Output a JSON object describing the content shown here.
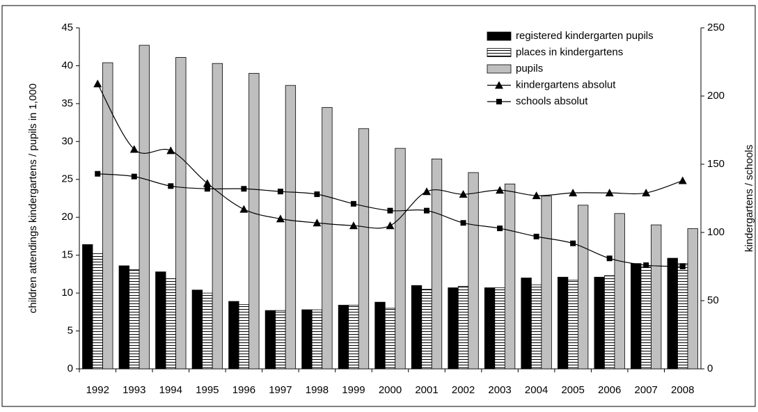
{
  "chart_data": {
    "type": "bar-line",
    "y_label": "children attendings kindergartens / pupils in 1,000",
    "y2_label": "kindergartens / schools",
    "categories": [
      "1992",
      "1993",
      "1994",
      "1995",
      "1996",
      "1997",
      "1998",
      "1999",
      "2000",
      "2001",
      "2002",
      "2003",
      "2004",
      "2005",
      "2006",
      "2007",
      "2008"
    ],
    "ylim": [
      0,
      45
    ],
    "yticks": [
      0,
      5,
      10,
      15,
      20,
      25,
      30,
      35,
      40,
      45
    ],
    "y2lim": [
      0,
      250
    ],
    "y2ticks": [
      0,
      50,
      100,
      150,
      200,
      250
    ],
    "legend": "top-right",
    "series": [
      {
        "name": "registered kindergarten pupils",
        "type": "bar",
        "color": "#000000",
        "values": [
          16.4,
          13.6,
          12.8,
          10.4,
          8.9,
          7.7,
          7.8,
          8.4,
          8.8,
          11.0,
          10.7,
          10.7,
          12.0,
          12.1,
          12.1,
          13.9,
          14.6
        ]
      },
      {
        "name": "places in kindergartens",
        "type": "bar",
        "color": "#ffffff",
        "pattern": "horizontal-lines",
        "values": [
          15.2,
          13.1,
          11.9,
          10.0,
          8.5,
          7.7,
          7.8,
          8.4,
          8.0,
          10.5,
          10.9,
          10.7,
          11.1,
          11.7,
          12.3,
          13.5,
          13.9
        ]
      },
      {
        "name": "pupils",
        "type": "bar",
        "color": "#bfbfbf",
        "values": [
          40.4,
          42.7,
          41.1,
          40.3,
          39.0,
          37.4,
          34.5,
          31.7,
          29.1,
          27.7,
          25.9,
          24.4,
          22.8,
          21.6,
          20.5,
          19.0,
          18.5
        ]
      },
      {
        "name": "kindergartens absolut",
        "type": "line",
        "axis": "y2",
        "color": "#000000",
        "marker": "triangle",
        "values": [
          209,
          161,
          160,
          136,
          117,
          110,
          107,
          105,
          105,
          130,
          128,
          131,
          127,
          129,
          129,
          129,
          138
        ]
      },
      {
        "name": "schools absolut",
        "type": "line",
        "axis": "y2",
        "color": "#000000",
        "marker": "square",
        "values": [
          143,
          141,
          134,
          132,
          132,
          130,
          128,
          121,
          116,
          116,
          107,
          103,
          97,
          92,
          81,
          76,
          75
        ]
      }
    ]
  }
}
